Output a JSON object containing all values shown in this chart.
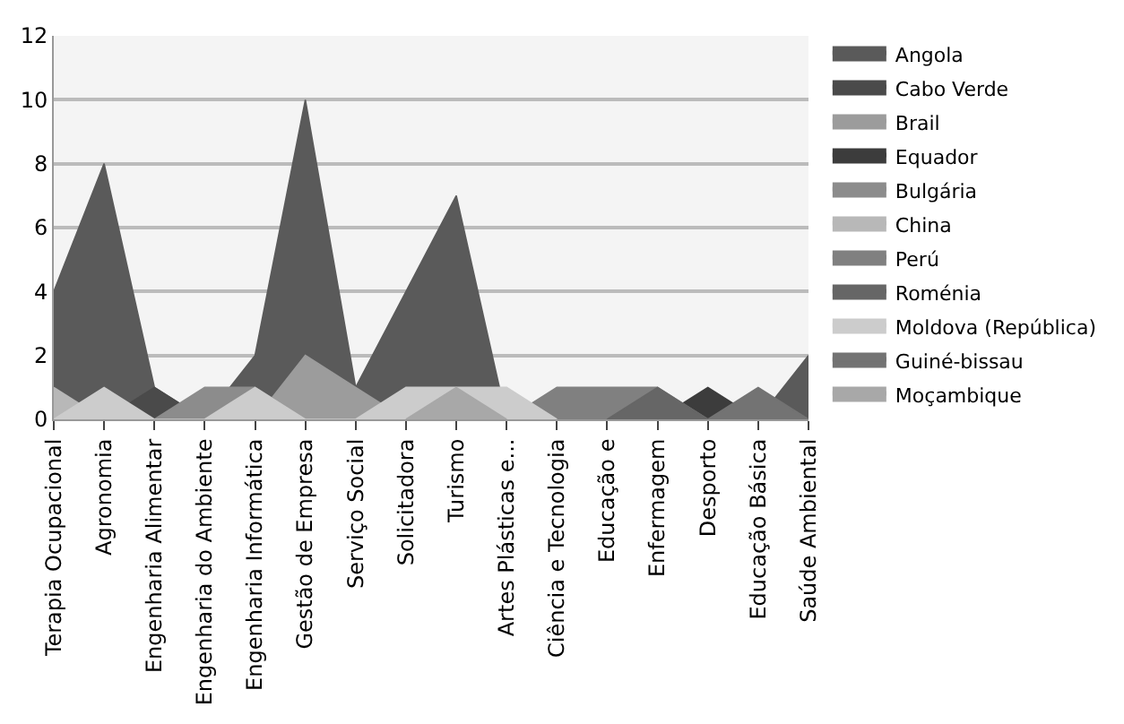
{
  "chart_data": {
    "type": "area",
    "categories": [
      "Terapia Ocupacional",
      "Agronomia",
      "Engenharia Alimentar",
      "Engenharia do Ambiente",
      "Engenharia Informática",
      "Gestão de Empresa",
      "Serviço Social",
      "Solicitadora",
      "Turismo",
      "Artes Plásticas e...",
      "Ciência e Tecnologia",
      "Educação e",
      "Enfermagem",
      "Desporto",
      "Educação Básica",
      "Saúde Ambiental"
    ],
    "series": [
      {
        "name": "Angola",
        "color": "#5a5a5a",
        "values": [
          4,
          8,
          1,
          0,
          2,
          10,
          1,
          4,
          7,
          0,
          0,
          0,
          0,
          0,
          0,
          2
        ]
      },
      {
        "name": "Cabo Verde",
        "color": "#4a4a4a",
        "values": [
          null,
          0,
          1,
          0,
          null,
          null,
          null,
          null,
          null,
          null,
          null,
          null,
          null,
          null,
          null,
          null
        ]
      },
      {
        "name": "Brail",
        "color": "#9c9c9c",
        "values": [
          null,
          null,
          null,
          null,
          0,
          2,
          1,
          0,
          null,
          null,
          null,
          null,
          null,
          null,
          null,
          null
        ]
      },
      {
        "name": "Equador",
        "color": "#3c3c3c",
        "values": [
          null,
          null,
          null,
          null,
          null,
          null,
          null,
          null,
          null,
          null,
          null,
          null,
          0,
          1,
          0,
          null
        ]
      },
      {
        "name": "Bulgária",
        "color": "#8c8c8c",
        "values": [
          null,
          null,
          0,
          1,
          1,
          0,
          null,
          null,
          null,
          null,
          null,
          null,
          null,
          null,
          null,
          null
        ]
      },
      {
        "name": "China",
        "color": "#b8b8b8",
        "values": [
          1,
          0,
          null,
          null,
          null,
          null,
          null,
          null,
          null,
          null,
          null,
          null,
          null,
          null,
          null,
          null
        ]
      },
      {
        "name": "Perú",
        "color": "#808080",
        "values": [
          null,
          null,
          null,
          null,
          null,
          null,
          null,
          null,
          null,
          0,
          1,
          1,
          1,
          0,
          null,
          null
        ]
      },
      {
        "name": "Roménia",
        "color": "#666666",
        "values": [
          null,
          null,
          null,
          null,
          null,
          null,
          null,
          null,
          null,
          null,
          null,
          0,
          1,
          0,
          null,
          null
        ]
      },
      {
        "name": "Moldova (República)",
        "color": "#cccccc",
        "values": [
          0,
          1,
          0,
          0,
          1,
          0,
          0,
          1,
          1,
          1,
          0,
          null,
          null,
          null,
          null,
          null
        ]
      },
      {
        "name": "Guiné-bissau",
        "color": "#737373",
        "values": [
          null,
          null,
          null,
          null,
          null,
          null,
          null,
          null,
          null,
          null,
          null,
          null,
          null,
          0,
          1,
          0
        ]
      },
      {
        "name": "Moçambique",
        "color": "#a8a8a8",
        "values": [
          null,
          null,
          null,
          null,
          null,
          null,
          null,
          0,
          1,
          0,
          null,
          null,
          null,
          null,
          null,
          null
        ]
      }
    ],
    "ylim": [
      0,
      12
    ],
    "yticks": [
      0,
      2,
      4,
      6,
      8,
      10,
      12
    ],
    "grid": "y",
    "legend": "right"
  }
}
